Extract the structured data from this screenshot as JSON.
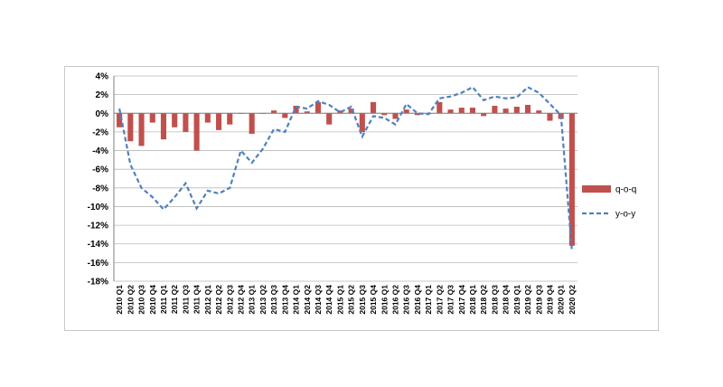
{
  "chart_data": {
    "type": "bar",
    "categories": [
      "2010 Q1",
      "2010 Q2",
      "2010 Q3",
      "2010 Q4",
      "2011 Q1",
      "2011 Q2",
      "2011 Q3",
      "2011 Q4",
      "2012 Q1",
      "2012 Q2",
      "2012 Q3",
      "2012 Q4",
      "2013 Q1",
      "2013 Q2",
      "2013 Q3",
      "2013 Q4",
      "2014 Q1",
      "2014 Q2",
      "2014 Q3",
      "2014 Q4",
      "2015 Q1",
      "2015 Q2",
      "2015 Q3",
      "2015 Q4",
      "2016 Q1",
      "2016 Q2",
      "2016 Q3",
      "2016 Q4",
      "2017 Q1",
      "2017 Q2",
      "2017 Q3",
      "2017 Q4",
      "2018 Q1",
      "2018 Q2",
      "2018 Q3",
      "2018 Q4",
      "2019 Q1",
      "2019 Q2",
      "2019 Q3",
      "2019 Q4",
      "2020 Q1",
      "2020 Q2"
    ],
    "series": [
      {
        "name": "q-o-q",
        "type": "bar",
        "color": "#c0504d",
        "values": [
          -1.5,
          -3.0,
          -3.5,
          -1.0,
          -2.8,
          -1.5,
          -2.0,
          -4.0,
          -1.0,
          -1.8,
          -1.2,
          0.0,
          -2.2,
          0.0,
          0.3,
          -0.5,
          0.8,
          0.2,
          1.2,
          -1.2,
          0.3,
          0.5,
          -2.0,
          1.2,
          -0.2,
          -0.6,
          0.4,
          -0.2,
          -0.1,
          1.2,
          0.4,
          0.6,
          0.6,
          -0.3,
          0.8,
          0.5,
          0.7,
          0.9,
          0.3,
          -0.8,
          -0.6,
          -14.2
        ]
      },
      {
        "name": "y-o-y",
        "type": "line",
        "color": "#4f81bd",
        "values": [
          0.5,
          -5.5,
          -8.0,
          -9.0,
          -10.3,
          -9.0,
          -7.5,
          -10.2,
          -8.3,
          -8.6,
          -8.0,
          -4.0,
          -5.3,
          -3.8,
          -1.7,
          -2.0,
          0.7,
          0.5,
          1.3,
          0.9,
          0.1,
          0.7,
          -2.5,
          -0.3,
          -0.5,
          -1.2,
          1.0,
          0.0,
          -0.1,
          1.6,
          1.8,
          2.2,
          2.8,
          1.4,
          1.8,
          1.6,
          1.7,
          2.8,
          2.2,
          1.0,
          -0.2,
          -14.8
        ]
      }
    ],
    "ylim": [
      -18,
      4
    ],
    "yticks": [
      "4%",
      "2%",
      "0%",
      "-2%",
      "-4%",
      "-6%",
      "-8%",
      "-10%",
      "-12%",
      "-14%",
      "-16%",
      "-18%"
    ],
    "ytick_values": [
      4,
      2,
      0,
      -2,
      -4,
      -6,
      -8,
      -10,
      -12,
      -14,
      -16,
      -18
    ],
    "grid": true,
    "legend_position": "right",
    "title": "",
    "xlabel": "",
    "ylabel": ""
  }
}
